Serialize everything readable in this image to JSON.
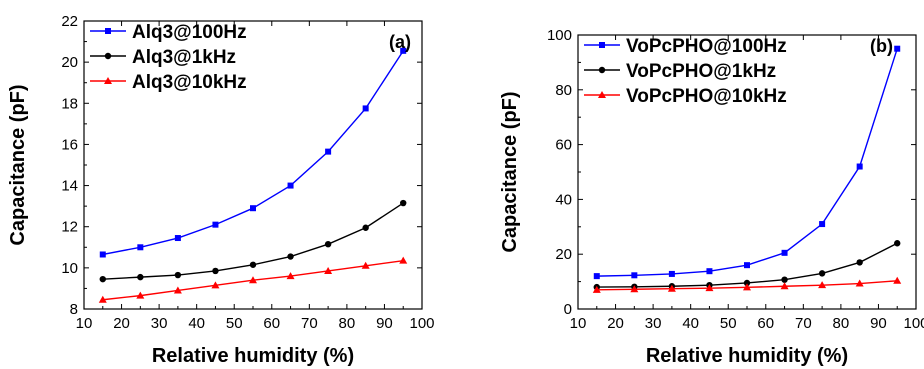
{
  "chart_data": [
    {
      "type": "line",
      "panel_label": "(a)",
      "xlabel": "Relative humidity (%)",
      "ylabel": "Capacitance (pF)",
      "xlim": [
        10,
        100
      ],
      "ylim": [
        8,
        22
      ],
      "xticks": [
        10,
        20,
        30,
        40,
        50,
        60,
        70,
        80,
        90,
        100
      ],
      "yticks": [
        8,
        10,
        12,
        14,
        16,
        18,
        20,
        22
      ],
      "grid": false,
      "legend_position": "top-left",
      "x": [
        15,
        25,
        35,
        45,
        55,
        65,
        75,
        85,
        95
      ],
      "series": [
        {
          "name": "Alq3@100Hz",
          "color": "#0000ff",
          "marker": "square",
          "values": [
            10.65,
            11.0,
            11.45,
            12.1,
            12.9,
            14.0,
            15.65,
            17.75,
            20.55
          ]
        },
        {
          "name": "Alq3@1kHz",
          "color": "#000000",
          "marker": "circle",
          "values": [
            9.45,
            9.55,
            9.65,
            9.85,
            10.15,
            10.55,
            11.15,
            11.95,
            13.15
          ]
        },
        {
          "name": "Alq3@10kHz",
          "color": "#ff0000",
          "marker": "triangle",
          "values": [
            8.45,
            8.65,
            8.9,
            9.15,
            9.4,
            9.6,
            9.85,
            10.1,
            10.35
          ]
        }
      ]
    },
    {
      "type": "line",
      "panel_label": "(b)",
      "xlabel": "Relative humidity (%)",
      "ylabel": "Capacitance (pF)",
      "xlim": [
        10,
        100
      ],
      "ylim": [
        0,
        100
      ],
      "xticks": [
        10,
        20,
        30,
        40,
        50,
        60,
        70,
        80,
        90,
        100
      ],
      "yticks": [
        0,
        20,
        40,
        60,
        80,
        100
      ],
      "grid": false,
      "legend_position": "top-left",
      "x": [
        15,
        25,
        35,
        45,
        55,
        65,
        75,
        85,
        95
      ],
      "series": [
        {
          "name": "VoPcPHO@100Hz",
          "color": "#0000ff",
          "marker": "square",
          "values": [
            12.0,
            12.3,
            12.8,
            13.8,
            16.0,
            20.5,
            31.0,
            52.0,
            95.0
          ]
        },
        {
          "name": "VoPcPHO@1kHz",
          "color": "#000000",
          "marker": "circle",
          "values": [
            8.0,
            8.1,
            8.3,
            8.7,
            9.5,
            10.7,
            13.0,
            17.0,
            24.0
          ]
        },
        {
          "name": "VoPcPHO@10kHz",
          "color": "#ff0000",
          "marker": "triangle",
          "values": [
            7.0,
            7.2,
            7.4,
            7.6,
            7.9,
            8.3,
            8.7,
            9.3,
            10.3
          ]
        }
      ]
    }
  ]
}
